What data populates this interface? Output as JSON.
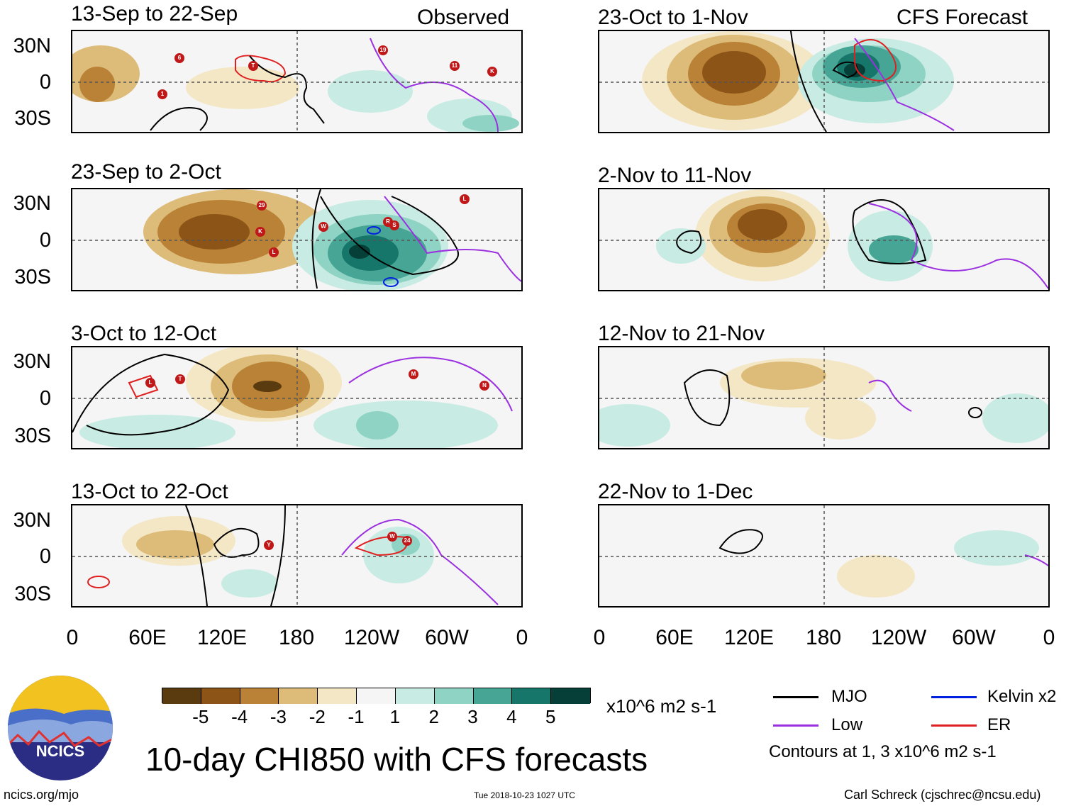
{
  "title": "10-day CHI850 with CFS forecasts",
  "left_header": "Observed",
  "right_header": "CFS Forecast",
  "lat_labels": [
    "30N",
    "0",
    "30S"
  ],
  "lon_labels": [
    "0",
    "60E",
    "120E",
    "180",
    "120W",
    "60W",
    "0"
  ],
  "panels": [
    {
      "period": "13-Sep to 22-Sep",
      "kind": "observed"
    },
    {
      "period": "23-Sep to 2-Oct",
      "kind": "observed"
    },
    {
      "period": "3-Oct to 12-Oct",
      "kind": "observed"
    },
    {
      "period": "13-Oct to 22-Oct",
      "kind": "observed"
    },
    {
      "period": "23-Oct to 1-Nov",
      "kind": "forecast"
    },
    {
      "period": "2-Nov to 11-Nov",
      "kind": "forecast"
    },
    {
      "period": "12-Nov to 21-Nov",
      "kind": "forecast"
    },
    {
      "period": "22-Nov to 1-Dec",
      "kind": "forecast"
    }
  ],
  "colorbar": {
    "colors": [
      "#5a3a0f",
      "#8c5417",
      "#b98236",
      "#ddbb78",
      "#f4e7c6",
      "#f5f5f5",
      "#c8ebe3",
      "#8fd3c4",
      "#46a595",
      "#16766a",
      "#053f37"
    ],
    "ticks": [
      "-5",
      "-4",
      "-3",
      "-2",
      "-1",
      "1",
      "2",
      "3",
      "4",
      "5"
    ],
    "units": "x10^6 m2 s-1"
  },
  "legend": {
    "items": [
      {
        "label": "MJO",
        "color": "#000000"
      },
      {
        "label": "Kelvin x2",
        "color": "#0020e0"
      },
      {
        "label": "Low",
        "color": "#9b30e0"
      },
      {
        "label": "ER",
        "color": "#e02020"
      }
    ],
    "contours_note": "Contours at 1, 3 x10^6 m2 s-1"
  },
  "footer": {
    "url": "ncics.org/mjo",
    "timestamp": "Tue 2018-10-23 1027 UTC",
    "author": "Carl Schreck (cjschrec@ncsu.edu)"
  },
  "logo_text": "NCICS",
  "storms": [
    {
      "panel": 0,
      "labels": [
        "6",
        "T",
        "19",
        "11",
        "K",
        "1"
      ]
    },
    {
      "panel": 1,
      "labels": [
        "29",
        "K",
        "L",
        "W",
        "R",
        "S",
        "L"
      ]
    },
    {
      "panel": 2,
      "labels": [
        "L",
        "T",
        "M",
        "N"
      ]
    },
    {
      "panel": 3,
      "labels": [
        "Y",
        "W",
        "24"
      ]
    }
  ]
}
